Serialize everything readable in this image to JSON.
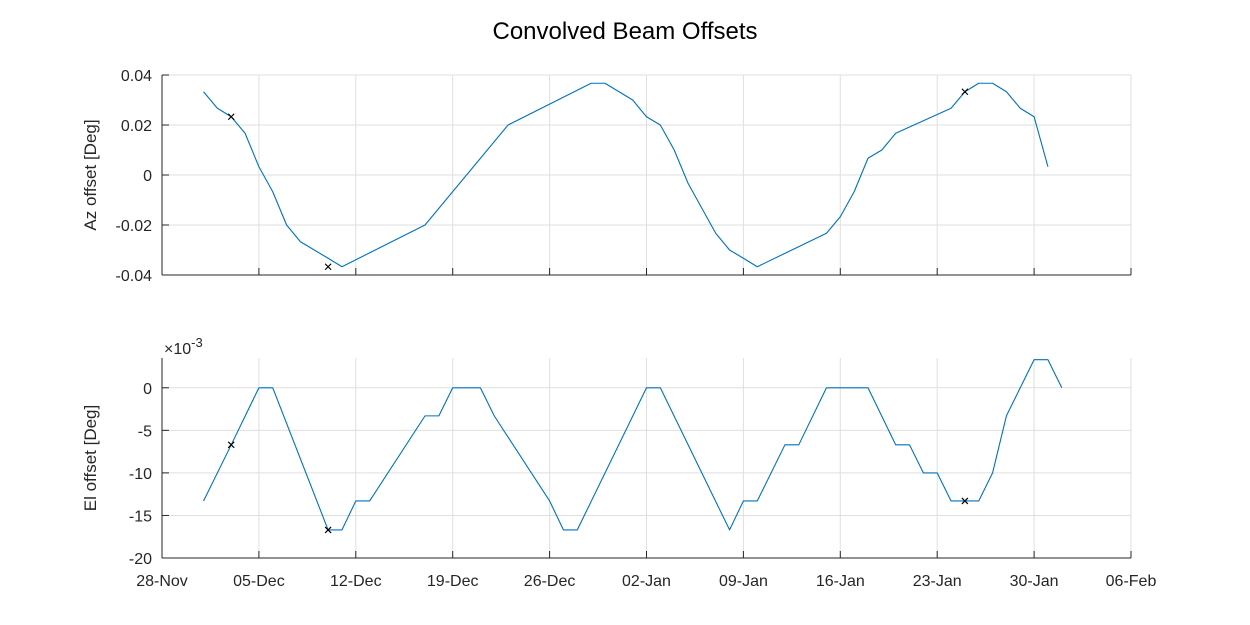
{
  "figure_title": "Convolved Beam Offsets",
  "colors": {
    "line": "#0072BD",
    "marker": "#000000",
    "grid": "#dfdfdf",
    "axis": "#262626"
  },
  "chart_data": [
    {
      "type": "line",
      "ylabel": "Az offset [Deg]",
      "xlim": [
        "2023-11-28",
        "2024-02-06"
      ],
      "ylim": [
        -0.04,
        0.04
      ],
      "grid": true,
      "yticks": [
        -0.04,
        -0.02,
        0,
        0.02,
        0.04
      ],
      "ytick_labels": [
        "-0.04",
        "-0.02",
        "0",
        "0.02",
        "0.04"
      ],
      "series": [
        {
          "x": [
            "2023-12-01",
            "2023-12-02",
            "2023-12-03",
            "2023-12-04",
            "2023-12-05",
            "2023-12-06",
            "2023-12-07",
            "2023-12-08",
            "2023-12-10",
            "2023-12-11",
            "2023-12-17",
            "2023-12-23",
            "2023-12-29",
            "2023-12-30",
            "2024-01-01",
            "2024-01-02",
            "2024-01-03",
            "2024-01-04",
            "2024-01-05",
            "2024-01-06",
            "2024-01-07",
            "2024-01-08",
            "2024-01-09",
            "2024-01-10",
            "2024-01-15",
            "2024-01-16",
            "2024-01-17",
            "2024-01-18",
            "2024-01-19",
            "2024-01-20",
            "2024-01-24",
            "2024-01-25",
            "2024-01-26",
            "2024-01-27",
            "2024-01-28",
            "2024-01-29",
            "2024-01-30",
            "2024-01-31"
          ],
          "y": [
            0.0333,
            0.0267,
            0.0233,
            0.0167,
            0.0033,
            -0.0067,
            -0.02,
            -0.0267,
            -0.0333,
            -0.0367,
            -0.02,
            0.02,
            0.0367,
            0.0367,
            0.03,
            0.0233,
            0.02,
            0.01,
            -0.0033,
            -0.0133,
            -0.0233,
            -0.03,
            -0.0333,
            -0.0367,
            -0.0233,
            -0.0167,
            -0.0067,
            0.0067,
            0.01,
            0.0167,
            0.0267,
            0.0333,
            0.0367,
            0.0367,
            0.0333,
            0.0267,
            0.0233,
            0.0033
          ]
        }
      ],
      "markers": {
        "x": [
          "2023-12-03",
          "2023-12-10",
          "2024-01-25"
        ],
        "y": [
          0.0233,
          -0.0367,
          0.0333
        ]
      }
    },
    {
      "type": "line",
      "ylabel": "El offset [Deg]",
      "exponent_label": "×10",
      "exponent_power": "-3",
      "xlim": [
        "2023-11-28",
        "2024-02-06"
      ],
      "ylim": [
        -20,
        3.5
      ],
      "grid": true,
      "yticks": [
        -20,
        -15,
        -10,
        -5,
        0
      ],
      "ytick_labels": [
        "-20",
        "-15",
        "-10",
        "-5",
        "0"
      ],
      "series": [
        {
          "x": [
            "2023-12-01",
            "2023-12-03",
            "2023-12-05",
            "2023-12-06",
            "2023-12-10",
            "2023-12-11",
            "2023-12-12",
            "2023-12-13",
            "2023-12-17",
            "2023-12-18",
            "2023-12-19",
            "2023-12-20",
            "2023-12-21",
            "2023-12-22",
            "2023-12-26",
            "2023-12-27",
            "2023-12-28",
            "2024-01-02",
            "2024-01-03",
            "2024-01-08",
            "2024-01-09",
            "2024-01-10",
            "2024-01-12",
            "2024-01-13",
            "2024-01-15",
            "2024-01-16",
            "2024-01-17",
            "2024-01-18",
            "2024-01-20",
            "2024-01-21",
            "2024-01-22",
            "2024-01-23",
            "2024-01-24",
            "2024-01-25",
            "2024-01-26",
            "2024-01-27",
            "2024-01-28",
            "2024-01-30",
            "2024-01-31",
            "2024-02-01"
          ],
          "y": [
            -13.3,
            -6.7,
            0,
            0,
            -16.7,
            -16.7,
            -13.3,
            -13.3,
            -3.3,
            -3.3,
            0,
            0,
            0,
            -3.3,
            -13.3,
            -16.7,
            -16.7,
            0,
            0,
            -16.7,
            -13.3,
            -13.3,
            -6.7,
            -6.7,
            0,
            0,
            0,
            0,
            -6.7,
            -6.7,
            -10,
            -10,
            -13.3,
            -13.3,
            -13.3,
            -10,
            -3.3,
            3.3,
            3.3,
            0
          ]
        }
      ],
      "markers": {
        "x": [
          "2023-12-03",
          "2023-12-10",
          "2024-01-25"
        ],
        "y": [
          -6.7,
          -16.7,
          -13.3
        ]
      },
      "xticks": [
        "2023-11-28",
        "2023-12-05",
        "2023-12-12",
        "2023-12-19",
        "2023-12-26",
        "2024-01-02",
        "2024-01-09",
        "2024-01-16",
        "2024-01-23",
        "2024-01-30",
        "2024-02-06"
      ],
      "xtick_labels": [
        "28-Nov",
        "05-Dec",
        "12-Dec",
        "19-Dec",
        "26-Dec",
        "02-Jan",
        "09-Jan",
        "16-Jan",
        "23-Jan",
        "30-Jan",
        "06-Feb"
      ]
    }
  ]
}
